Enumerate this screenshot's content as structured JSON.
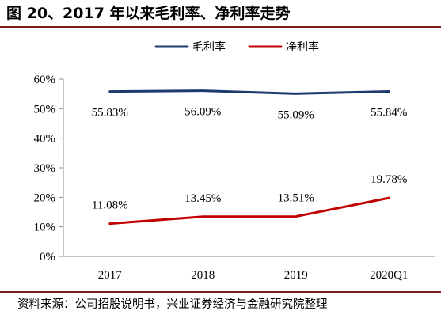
{
  "figure_title": "图 20、2017 年以来毛利率、净利率走势",
  "source": "资料来源：公司招股说明书，兴业证券经济与金融研究院整理",
  "colors": {
    "rule": "#7a1f1f"
  },
  "chart_data": {
    "type": "line",
    "title": "",
    "xlabel": "",
    "ylabel": "",
    "categories": [
      "2017",
      "2018",
      "2019",
      "2020Q1"
    ],
    "ylim": [
      0,
      60
    ],
    "yticks": [
      0,
      10,
      20,
      30,
      40,
      50,
      60
    ],
    "ytick_labels": [
      "0%",
      "10%",
      "20%",
      "30%",
      "40%",
      "50%",
      "60%"
    ],
    "grid": false,
    "legend": "top-center",
    "series": [
      {
        "name": "毛利率",
        "color": "#1f3a6e",
        "values": [
          55.83,
          56.09,
          55.09,
          55.84
        ],
        "labels": [
          "55.83%",
          "56.09%",
          "55.09%",
          "55.84%"
        ]
      },
      {
        "name": "净利率",
        "color": "#c00000",
        "values": [
          11.08,
          13.45,
          13.51,
          19.78
        ],
        "labels": [
          "11.08%",
          "13.45%",
          "13.51%",
          "19.78%"
        ]
      }
    ]
  }
}
